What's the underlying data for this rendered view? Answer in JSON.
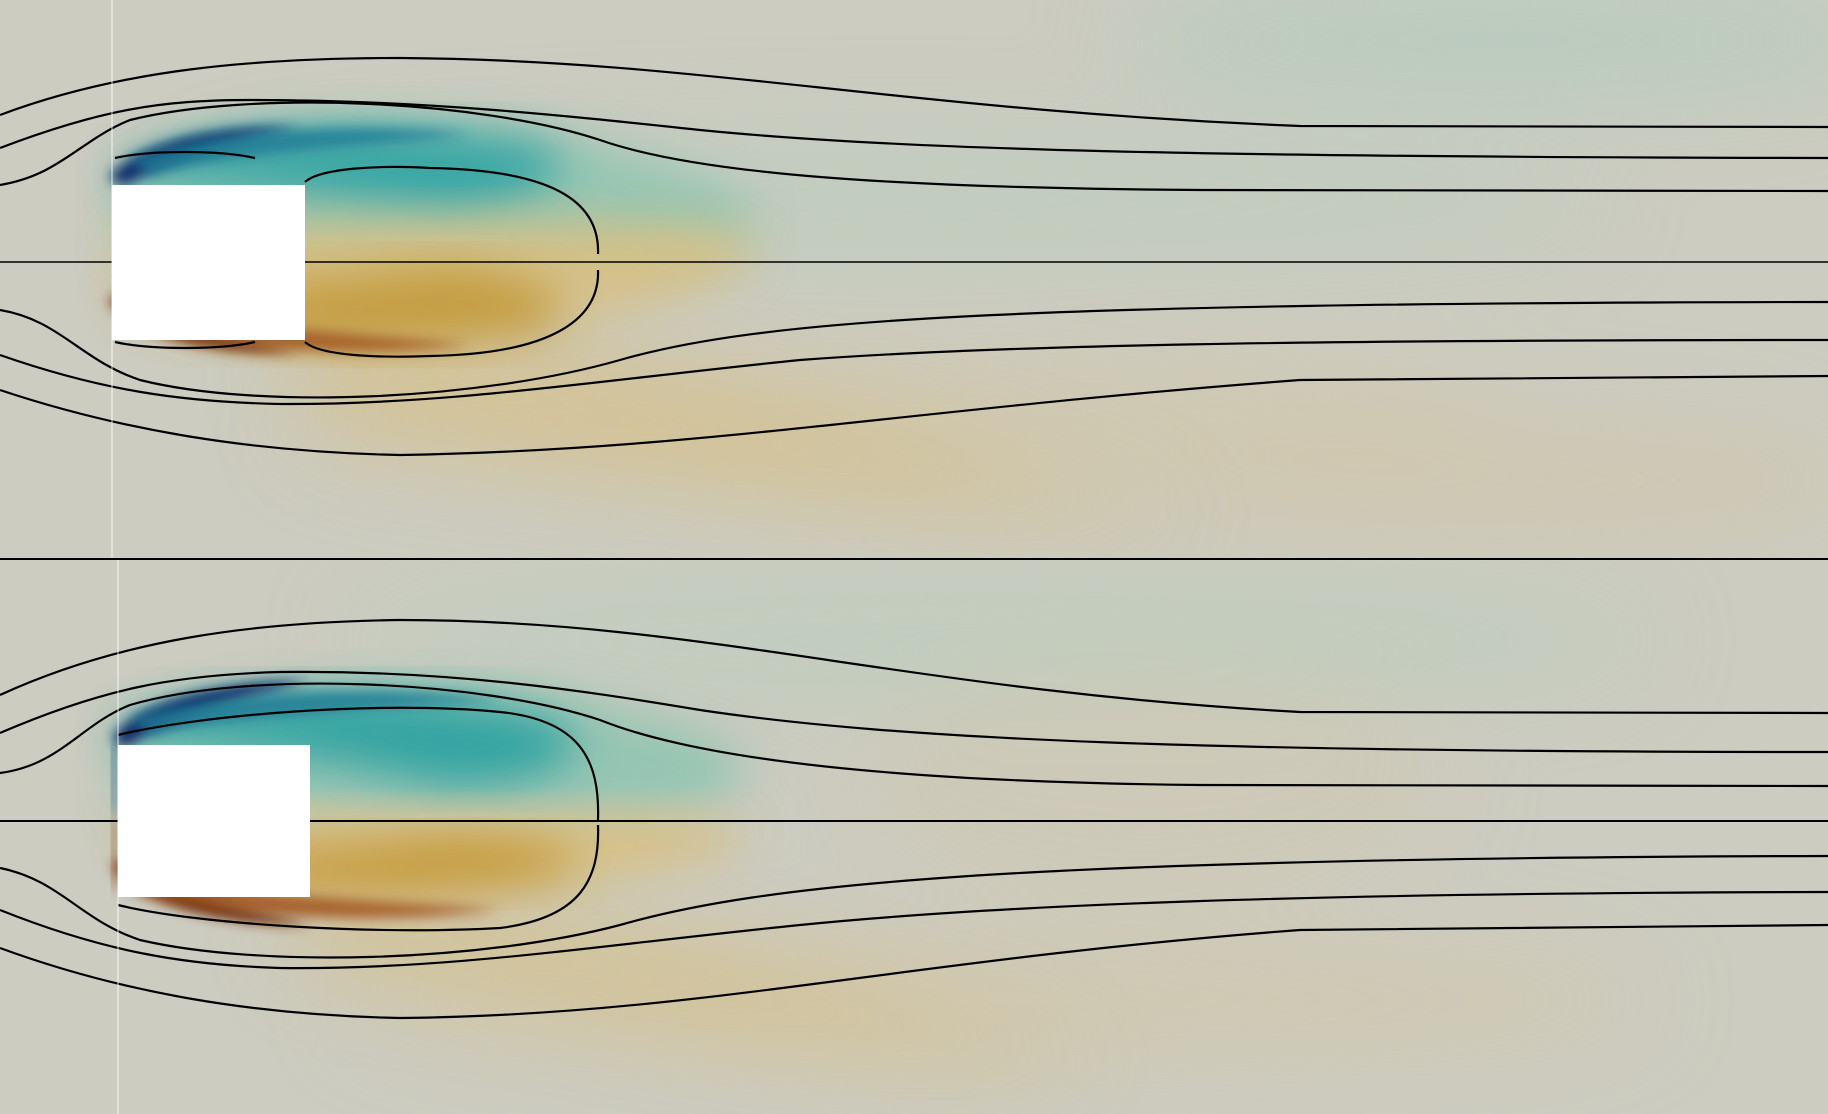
{
  "figure": {
    "panel_count": 2,
    "colormap": {
      "negative": "#0a2d6b",
      "negative_mid": "#1a9a9f",
      "negative_light": "#7dc0b0",
      "neutral": "#ccccc0",
      "positive_light": "#d6c08a",
      "positive_mid": "#c49a3a",
      "positive": "#6a2a10"
    },
    "streamline_color": "#000000",
    "obstacle_color": "#ffffff",
    "divider_color": "#000000"
  }
}
